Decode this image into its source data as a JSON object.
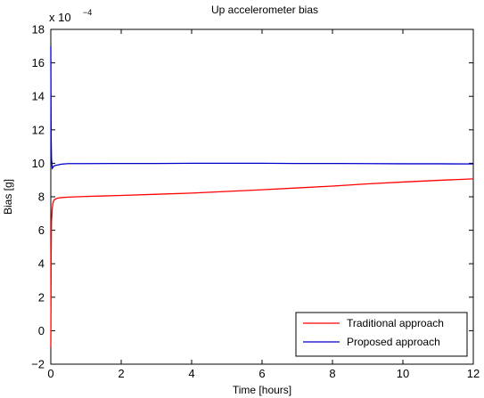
{
  "chart_data": {
    "type": "line",
    "title": "Up accelerometer bias",
    "xlabel": "Time [hours]",
    "ylabel": "Bias [g]",
    "y_multiplier_label": "x 10",
    "y_multiplier_exponent": "−4",
    "xlim": [
      0,
      12
    ],
    "ylim": [
      -2,
      18
    ],
    "x_ticks": [
      0,
      2,
      4,
      6,
      8,
      10,
      12
    ],
    "y_ticks": [
      -2,
      0,
      2,
      4,
      6,
      8,
      10,
      12,
      14,
      16,
      18
    ],
    "x_tick_labels": [
      "0",
      "2",
      "4",
      "6",
      "8",
      "10",
      "12"
    ],
    "y_tick_labels": [
      "−2",
      "0",
      "2",
      "4",
      "6",
      "8",
      "10",
      "12",
      "14",
      "16",
      "18"
    ],
    "grid": false,
    "legend_position": "bottom-right",
    "series": [
      {
        "name": "Traditional approach",
        "color": "#ff0000",
        "x": [
          0,
          0.01,
          0.02,
          0.04,
          0.06,
          0.08,
          0.1,
          0.15,
          0.2,
          0.3,
          0.5,
          0.75,
          1,
          1.5,
          2,
          3,
          4,
          5,
          6,
          7,
          8,
          9,
          10,
          11,
          12
        ],
        "y": [
          -1,
          4.5,
          6.5,
          7.3,
          7.6,
          7.75,
          7.82,
          7.88,
          7.92,
          7.95,
          7.98,
          8.0,
          8.02,
          8.05,
          8.08,
          8.15,
          8.22,
          8.32,
          8.42,
          8.53,
          8.64,
          8.77,
          8.88,
          8.98,
          9.07
        ]
      },
      {
        "name": "Proposed approach",
        "color": "#0000cc",
        "x": [
          0,
          0.005,
          0.01,
          0.02,
          0.04,
          0.06,
          0.08,
          0.1,
          0.15,
          0.2,
          0.3,
          0.5,
          1,
          2,
          3,
          4,
          5,
          6,
          7,
          8,
          9,
          10,
          11,
          12
        ],
        "y": [
          17,
          14,
          11.5,
          10.3,
          9.7,
          9.75,
          9.82,
          9.85,
          9.88,
          9.9,
          9.95,
          9.98,
          9.98,
          9.99,
          9.99,
          10.0,
          10.0,
          10.0,
          9.99,
          9.99,
          9.98,
          9.97,
          9.97,
          9.96
        ]
      }
    ]
  }
}
